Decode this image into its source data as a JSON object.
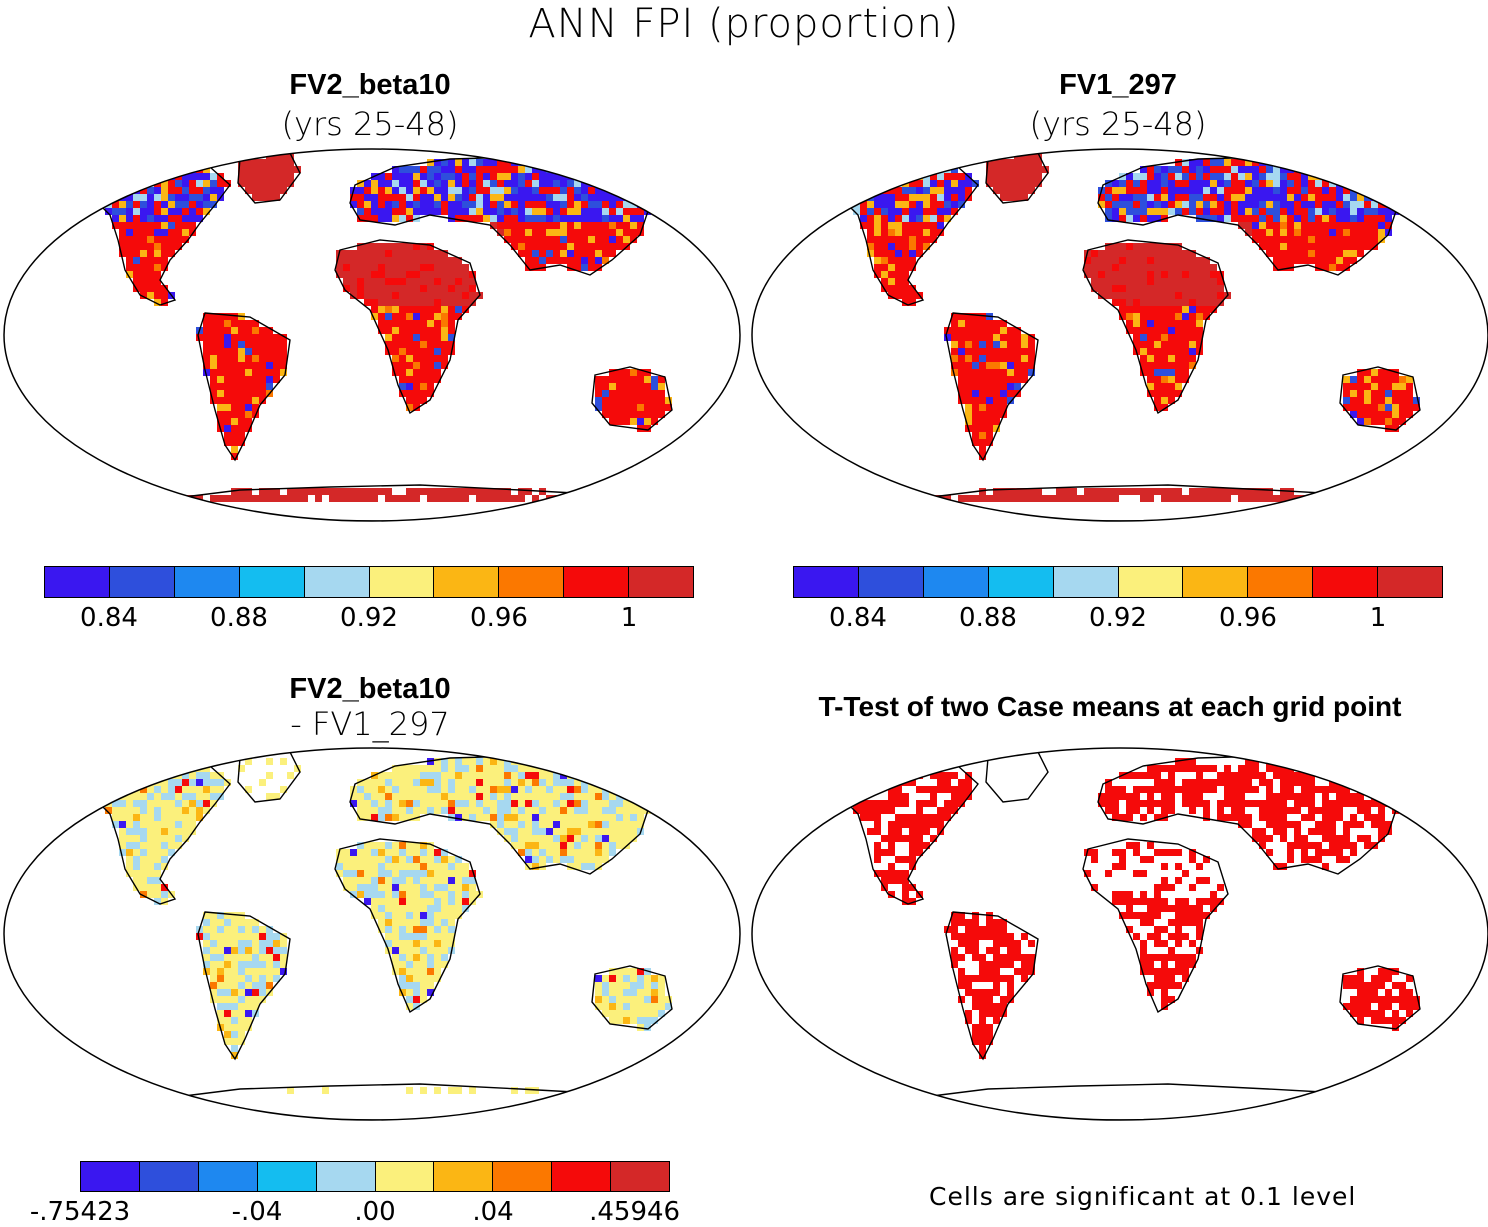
{
  "title": "ANN FPI (proportion)",
  "panels": [
    {
      "id": "fv2",
      "title": "FV2_beta10",
      "subtitle": "(yrs 25-48)"
    },
    {
      "id": "fv1",
      "title": "FV1_297",
      "subtitle": "(yrs 25-48)"
    },
    {
      "id": "diff",
      "title": "FV2_beta10",
      "subtitle": "- FV1_297"
    },
    {
      "id": "ttest",
      "title": "T-Test of two Case means at each grid point",
      "subtitle": ""
    }
  ],
  "colorbar_abs": {
    "colors": [
      "#3a17f0",
      "#2e4fdc",
      "#1e88f0",
      "#14bdf0",
      "#a6d8f0",
      "#fbf07c",
      "#fbb614",
      "#fb7800",
      "#f50a0a",
      "#d42828"
    ],
    "ticks": [
      "0.84",
      "0.88",
      "0.92",
      "0.96",
      "1"
    ]
  },
  "colorbar_diff": {
    "colors": [
      "#3a17f0",
      "#2e4fdc",
      "#1e88f0",
      "#14bdf0",
      "#a6d8f0",
      "#fbf07c",
      "#fbb614",
      "#fb7800",
      "#f50a0a",
      "#d42828"
    ],
    "ticks": [
      "-.75423",
      "-.04",
      ".00",
      ".04",
      ".45946"
    ]
  },
  "significance_note": "Cells are significant at 0.1 level",
  "significance_color": "#f50a0a"
}
